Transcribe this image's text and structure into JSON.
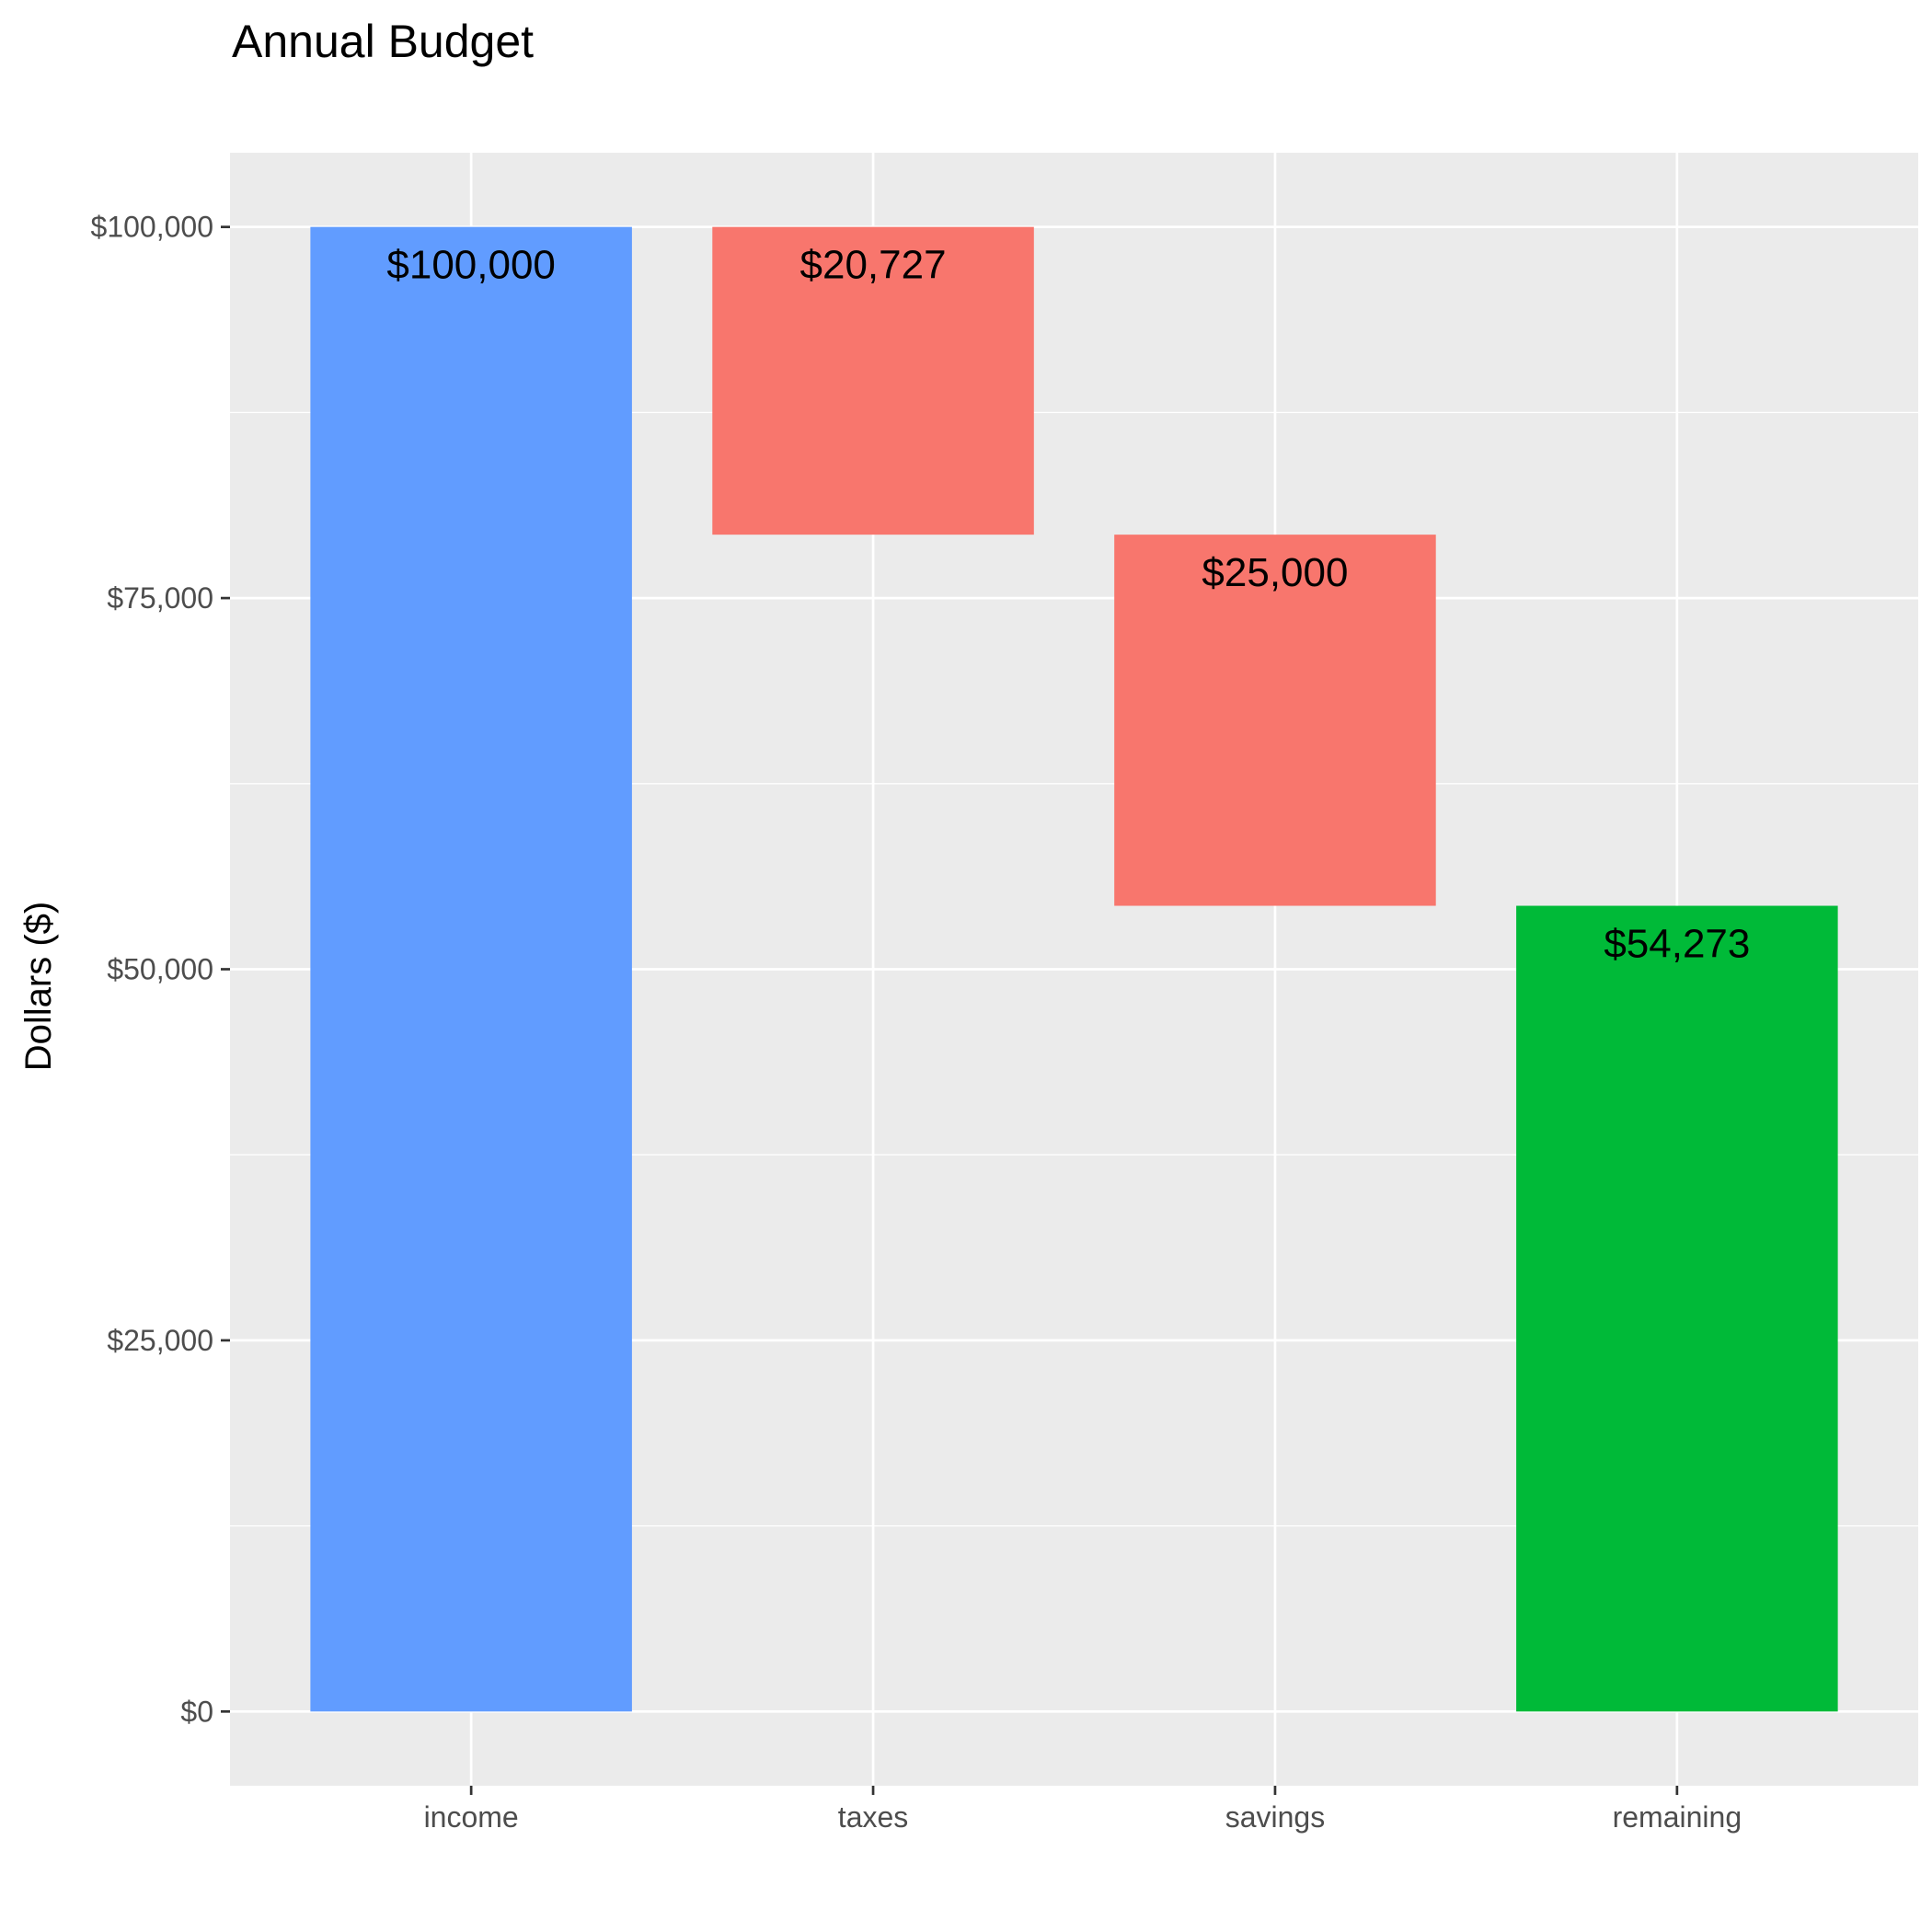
{
  "chart_data": {
    "type": "bar",
    "subtype": "waterfall",
    "title": "Annual Budget",
    "xlabel": "",
    "ylabel": "Dollars ($)",
    "ylim": [
      -5000,
      105000
    ],
    "y_ticks": [
      0,
      25000,
      50000,
      75000,
      100000
    ],
    "y_tick_labels": [
      "$0",
      "$25,000",
      "$50,000",
      "$75,000",
      "$100,000"
    ],
    "grid": true,
    "categories": [
      "income",
      "taxes",
      "savings",
      "remaining"
    ],
    "bars": [
      {
        "category": "income",
        "start": 0,
        "end": 100000,
        "value": 100000,
        "label": "$100,000",
        "color": "#619CFF"
      },
      {
        "category": "taxes",
        "start": 79273,
        "end": 100000,
        "value": 20727,
        "label": "$20,727",
        "color": "#F8766D"
      },
      {
        "category": "savings",
        "start": 54273,
        "end": 79273,
        "value": 25000,
        "label": "$25,000",
        "color": "#F8766D"
      },
      {
        "category": "remaining",
        "start": 0,
        "end": 54273,
        "value": 54273,
        "label": "$54,273",
        "color": "#00BA38"
      }
    ],
    "colors": {
      "panel_background": "#EBEBEB",
      "grid_line": "#FFFFFF",
      "tick": "#333333"
    }
  }
}
